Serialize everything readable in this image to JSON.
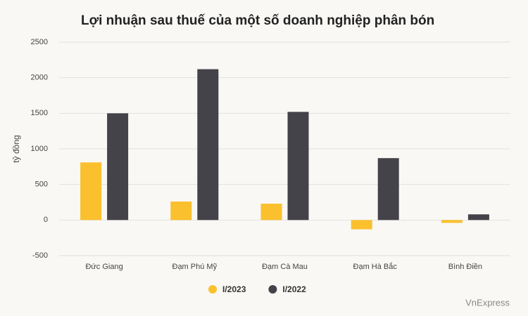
{
  "chart_data": {
    "type": "bar",
    "title": "Lợi nhuận sau thuế của một số doanh nghiệp phân bón",
    "y_label": "tỷ đồng",
    "source": "VnExpress",
    "categories": [
      "Đức Giang",
      "Đạm Phú Mỹ",
      "Đạm Cà Mau",
      "Đạm Hà Bắc",
      "Bình Điền"
    ],
    "series": [
      {
        "name": "I/2023",
        "color": "#fbc02d",
        "values": [
          810,
          260,
          230,
          -130,
          -40
        ]
      },
      {
        "name": "I/2022",
        "color": "#444349",
        "values": [
          1500,
          2120,
          1520,
          870,
          80
        ]
      }
    ],
    "ylim": [
      -500,
      2500
    ],
    "yticks": [
      -500,
      0,
      500,
      1000,
      1500,
      2000,
      2500
    ],
    "grid": true
  }
}
